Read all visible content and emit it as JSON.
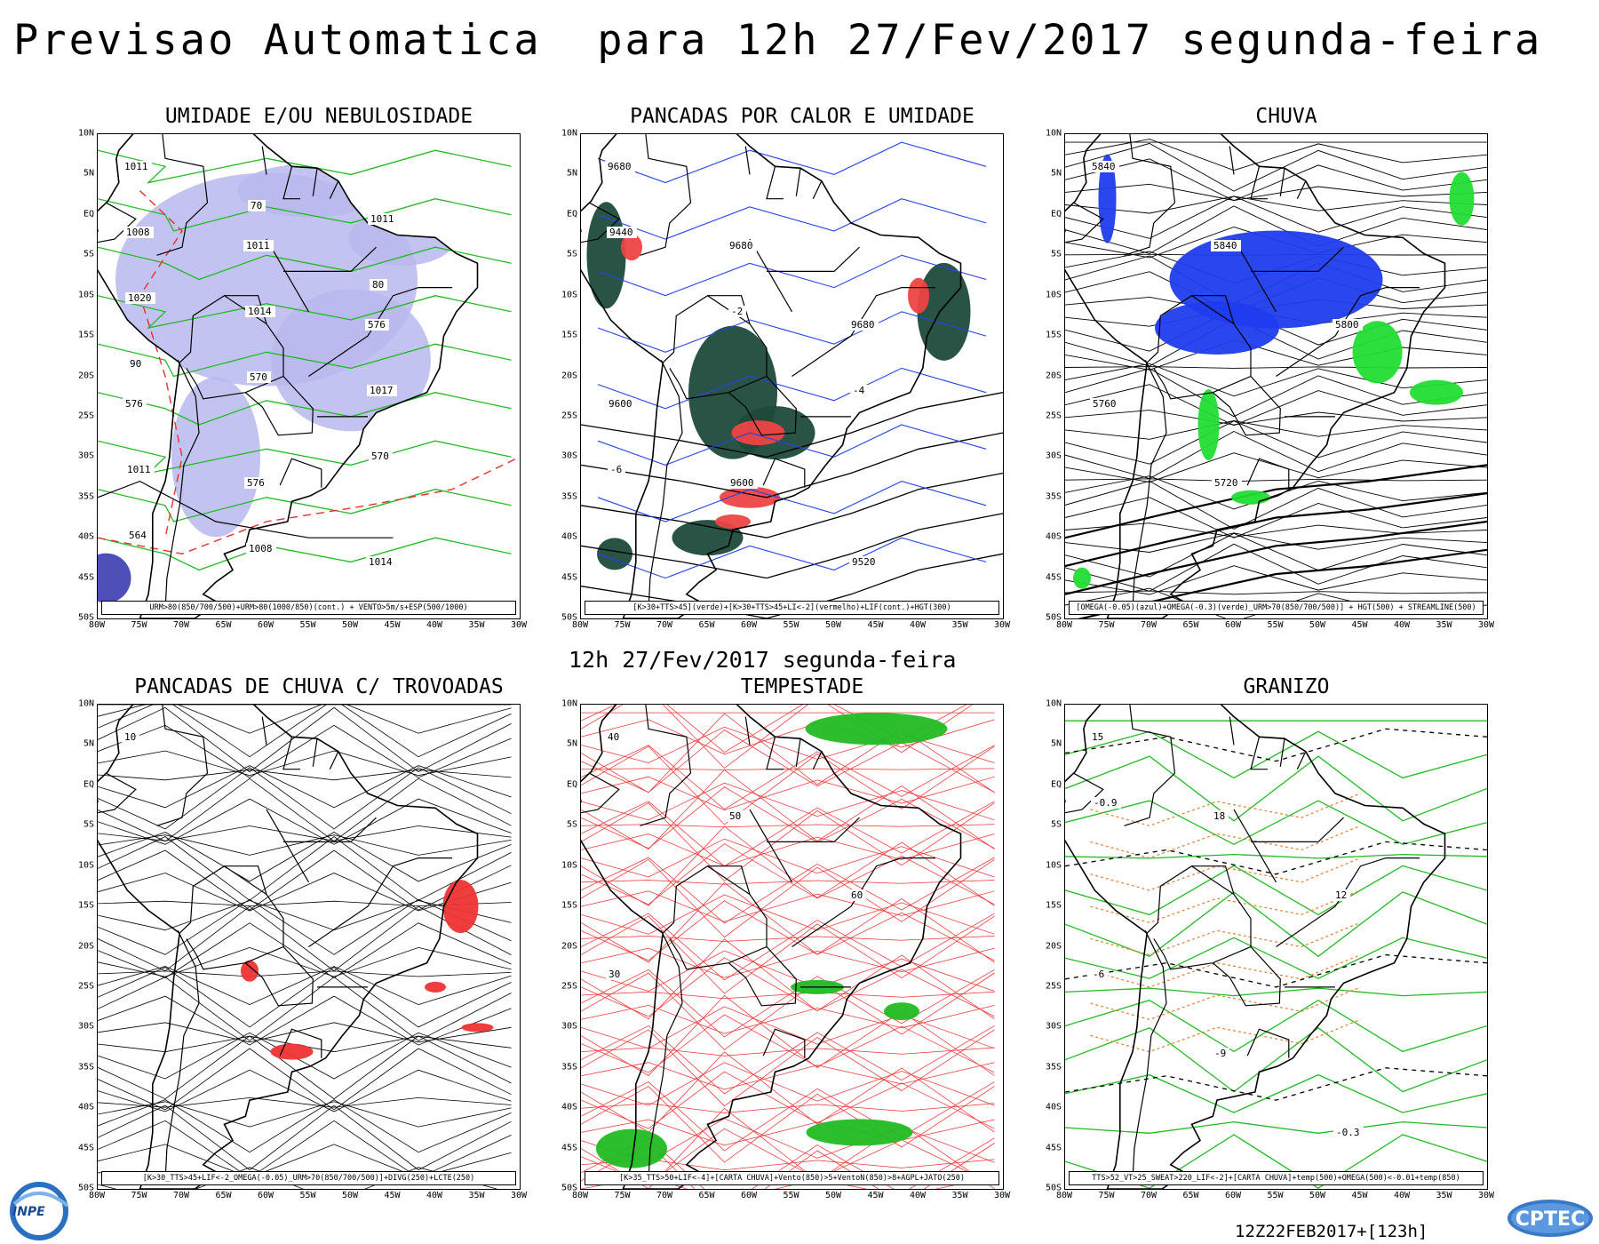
{
  "header": {
    "title": "Previsao Automatica  para 12h 27/Fev/2017 segunda-feira",
    "subtitle": "12h 27/Fev/2017 segunda-feira"
  },
  "lat_labels": [
    "10N",
    "5N",
    "EQ",
    "5S",
    "10S",
    "15S",
    "20S",
    "25S",
    "30S",
    "35S",
    "40S",
    "45S",
    "50S"
  ],
  "lon_labels": [
    "80W",
    "75W",
    "70W",
    "65W",
    "60W",
    "55W",
    "50W",
    "45W",
    "40W",
    "35W",
    "30W"
  ],
  "panels": [
    {
      "title": "UMIDADE E/OU NEBULOSIDADE",
      "legend": "URM>80(850/700/500)+URM>80(1000/850)(cont.) + VENTO>5m/s+ESP(500/1000)",
      "values": [
        "1011",
        "1011",
        "576",
        "576",
        "576",
        "1014",
        "1008",
        "1014",
        "1017",
        "1011",
        "1008",
        "1011",
        "1020",
        "570",
        "570",
        "564",
        "70",
        "80",
        "90"
      ]
    },
    {
      "title": "PANCADAS POR CALOR E UMIDADE",
      "legend": "[K>30+TTS>45](verde)+[K>30+TTS>45+LI<-2](vermelho)+LIF(cont.)+HGT(300)",
      "values": [
        "9680",
        "9680",
        "9680",
        "9600",
        "9600",
        "9520",
        "9440",
        "-2",
        "-4",
        "-6"
      ]
    },
    {
      "title": "CHUVA",
      "legend": "[OMEGA(-0.05)(azul)+OMEGA(-0.3)(verde)_URM>70(850/700/500)] + HGT(500) + STREAMLINE(500)",
      "values": [
        "5840",
        "5840",
        "5800",
        "5760",
        "5720"
      ]
    },
    {
      "title": "PANCADAS DE CHUVA C/ TROVOADAS",
      "legend": "[K>30_TTS>45+LIF<-2_OMEGA(-0.05)_URM>70(850/700/500)]+DIVG(250)+LCTE(250)",
      "values": [
        "10"
      ]
    },
    {
      "title": "TEMPESTADE",
      "legend": "[K>35_TTS>50+LIF<-4]+[CARTA CHUVA]+Vento(850)>5+VentoN(850)>8+AGPL+JATO(250)",
      "values": [
        "40",
        "50",
        "60",
        "30"
      ]
    },
    {
      "title": "GRANIZO",
      "legend": "TTS>52_VT>25_SWEAT>220_LIF<-2]+[CARTA CHUVA]+temp(500)+OMEGA(500)<-0.01+temp(850)",
      "values": [
        "15",
        "18",
        "12",
        "-6",
        "-9",
        "-0.3",
        "-0.9"
      ]
    }
  ],
  "footer": {
    "run_stamp": "12Z22FEB2017+[123h]",
    "logo_left": "INPE",
    "logo_right": "CPTEC"
  },
  "colors": {
    "humidity_fill": "#b8b8ee",
    "contour_green": "#22bb22",
    "contour_red": "#e83030",
    "contour_blue": "#2244ee",
    "deep_green_fill": "#1d4a3a",
    "hot_red_fill": "#ee4444",
    "rain_blue": "#1f3dee",
    "rain_green": "#22dd33",
    "storm_red": "#ee3333",
    "hail_orange": "#e08030"
  }
}
